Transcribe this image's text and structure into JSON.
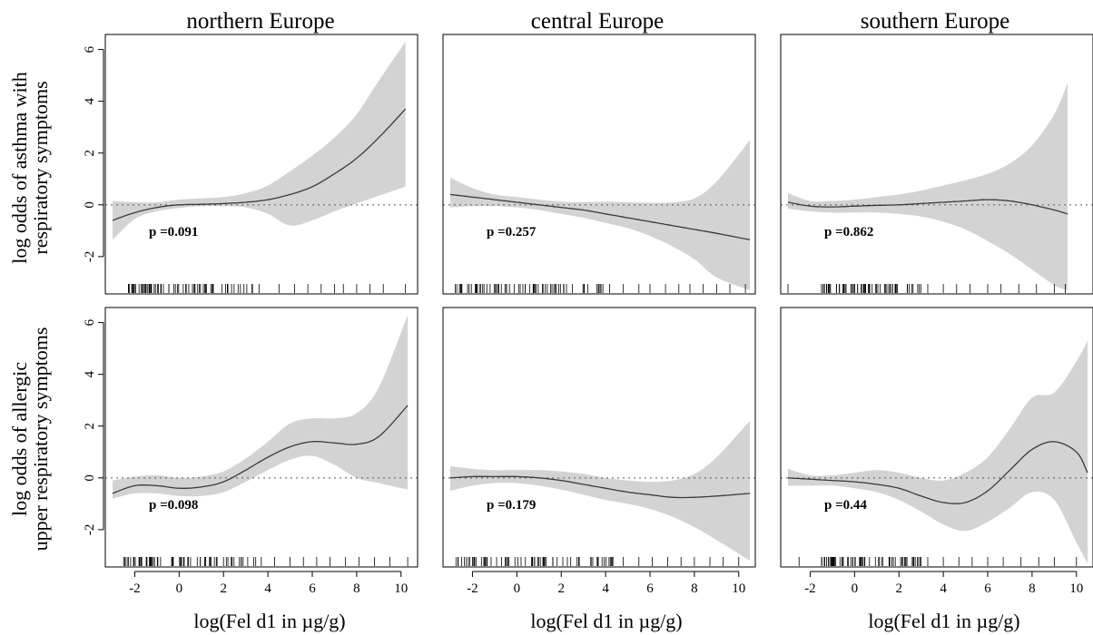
{
  "chart_data": {
    "type": "line",
    "layout": "2x3 small multiples; shaded confidence band around each smoothed curve; dashed horizontal reference line at y=0; rug marks of observations along bottom",
    "columns": [
      "northern Europe",
      "central Europe",
      "southern Europe"
    ],
    "rows": [
      [
        "log odds of asthma with",
        "respiratory symptoms"
      ],
      [
        "log odds of allergic",
        "upper respiratory symptoms"
      ]
    ],
    "xlabel": "log(Fel d1 in µg/g)",
    "xlim": [
      -3,
      10.5
    ],
    "ylim": [
      -3.3,
      6.3
    ],
    "xticks": [
      -2,
      0,
      2,
      4,
      6,
      8,
      10
    ],
    "yticks": [
      -2,
      0,
      2,
      4,
      6
    ],
    "band_color": "#d3d3d3",
    "line_color": "#3a3a3a",
    "reference_line": 0,
    "panels": [
      {
        "region": "northern Europe",
        "outcome": "asthma with respiratory symptoms",
        "p_label": "p =0.091",
        "x": [
          -3,
          -2,
          -1,
          0,
          1,
          2,
          3,
          4,
          5,
          6,
          7,
          8,
          9,
          10.2
        ],
        "y": [
          -0.6,
          -0.3,
          -0.1,
          0.0,
          0.02,
          0.05,
          0.1,
          0.2,
          0.4,
          0.7,
          1.2,
          1.8,
          2.6,
          3.7
        ],
        "lower": [
          -1.35,
          -0.55,
          -0.25,
          -0.12,
          -0.05,
          -0.05,
          -0.1,
          -0.35,
          -0.8,
          -0.6,
          -0.25,
          0.05,
          0.35,
          0.7
        ],
        "upper": [
          0.15,
          0.1,
          0.1,
          0.2,
          0.25,
          0.3,
          0.45,
          0.75,
          1.3,
          1.9,
          2.6,
          3.5,
          4.8,
          6.3
        ],
        "rug": {
          "dense": [
            -2.3,
            3.5
          ],
          "sparse": [
            3.6,
            4.5,
            5.2,
            5.8,
            6.4,
            7.0,
            7.4,
            8.0,
            8.6,
            9.2,
            10.2
          ]
        }
      },
      {
        "region": "central Europe",
        "outcome": "asthma with respiratory symptoms",
        "p_label": "p =0.257",
        "x": [
          -3,
          -2,
          -1,
          0,
          1,
          2,
          3,
          4,
          5,
          6,
          7,
          8,
          9,
          10.5
        ],
        "y": [
          0.4,
          0.3,
          0.2,
          0.1,
          0.0,
          -0.1,
          -0.2,
          -0.35,
          -0.5,
          -0.65,
          -0.8,
          -0.95,
          -1.1,
          -1.35
        ],
        "lower": [
          -0.1,
          -0.05,
          -0.05,
          -0.1,
          -0.2,
          -0.35,
          -0.5,
          -0.7,
          -0.9,
          -1.2,
          -1.6,
          -2.1,
          -2.8,
          -3.3
        ],
        "upper": [
          1.05,
          0.65,
          0.4,
          0.3,
          0.2,
          0.12,
          0.1,
          0.12,
          0.1,
          0.08,
          0.1,
          0.25,
          0.9,
          2.5
        ],
        "rug": {
          "dense": [
            -2.8,
            4.5
          ],
          "sparse": [
            4.8,
            5.5,
            6.0,
            6.7,
            7.3,
            7.8,
            8.4,
            9.0,
            9.6,
            10.3
          ]
        }
      },
      {
        "region": "southern Europe",
        "outcome": "asthma with respiratory symptoms",
        "p_label": "p =0.862",
        "x": [
          -3,
          -2,
          -1,
          0,
          1,
          2,
          3,
          4,
          5,
          6,
          7,
          8,
          9,
          9.6
        ],
        "y": [
          0.1,
          -0.05,
          -0.08,
          -0.05,
          -0.02,
          0.0,
          0.05,
          0.1,
          0.15,
          0.2,
          0.15,
          0.0,
          -0.2,
          -0.35
        ],
        "lower": [
          -0.15,
          -0.25,
          -0.3,
          -0.3,
          -0.3,
          -0.35,
          -0.45,
          -0.65,
          -0.95,
          -1.4,
          -1.9,
          -2.5,
          -3.1,
          -3.3
        ],
        "upper": [
          0.45,
          0.15,
          0.15,
          0.2,
          0.3,
          0.4,
          0.55,
          0.75,
          0.95,
          1.2,
          1.6,
          2.3,
          3.5,
          4.7
        ],
        "rug": {
          "dense": [
            -1.5,
            3.0
          ],
          "sparse": [
            -3.0,
            3.3,
            4.0,
            4.6,
            5.2,
            6.0,
            6.6,
            7.4,
            8.2,
            9.0,
            9.5
          ]
        }
      },
      {
        "region": "northern Europe",
        "outcome": "allergic upper respiratory symptoms",
        "p_label": "p =0.098",
        "x": [
          -3,
          -2,
          -1,
          0,
          1,
          2,
          3,
          4,
          5,
          6,
          7,
          8,
          9,
          10.3
        ],
        "y": [
          -0.6,
          -0.3,
          -0.3,
          -0.4,
          -0.35,
          -0.15,
          0.3,
          0.8,
          1.2,
          1.4,
          1.35,
          1.3,
          1.6,
          2.8
        ],
        "lower": [
          -0.8,
          -0.6,
          -0.6,
          -0.7,
          -0.7,
          -0.55,
          -0.15,
          0.3,
          0.7,
          0.85,
          0.5,
          0.0,
          -0.2,
          -0.45
        ],
        "upper": [
          -0.1,
          0.05,
          0.1,
          0.0,
          0.05,
          0.25,
          0.75,
          1.4,
          2.1,
          2.3,
          2.3,
          2.5,
          3.5,
          6.3
        ],
        "rug": {
          "dense": [
            -2.5,
            4.0
          ],
          "sparse": [
            4.3,
            5.0,
            5.6,
            6.2,
            6.8,
            7.5,
            8.1,
            8.8,
            9.5,
            10.3
          ]
        }
      },
      {
        "region": "central Europe",
        "outcome": "allergic upper respiratory symptoms",
        "p_label": "p =0.179",
        "x": [
          -3,
          -2,
          -1,
          0,
          1,
          2,
          3,
          4,
          5,
          6,
          7,
          8,
          9,
          10.5
        ],
        "y": [
          0.0,
          0.05,
          0.05,
          0.05,
          0.0,
          -0.1,
          -0.25,
          -0.4,
          -0.55,
          -0.65,
          -0.75,
          -0.75,
          -0.7,
          -0.6
        ],
        "lower": [
          -0.5,
          -0.3,
          -0.2,
          -0.2,
          -0.3,
          -0.45,
          -0.65,
          -0.85,
          -1.0,
          -1.2,
          -1.5,
          -1.9,
          -2.4,
          -3.2
        ],
        "upper": [
          0.45,
          0.35,
          0.3,
          0.3,
          0.3,
          0.25,
          0.15,
          0.0,
          -0.1,
          -0.15,
          -0.1,
          0.15,
          0.8,
          2.2
        ],
        "rug": {
          "dense": [
            -2.8,
            4.5
          ],
          "sparse": [
            4.8,
            5.5,
            6.1,
            6.8,
            7.4,
            8.0,
            8.7,
            9.3,
            10.0
          ]
        }
      },
      {
        "region": "southern Europe",
        "outcome": "allergic upper respiratory symptoms",
        "p_label": "p =0.44",
        "x": [
          -3,
          -2,
          -1,
          0,
          1,
          2,
          3,
          4,
          5,
          6,
          7,
          8,
          9,
          10,
          10.5
        ],
        "y": [
          0.0,
          -0.05,
          -0.1,
          -0.15,
          -0.25,
          -0.4,
          -0.7,
          -0.95,
          -0.95,
          -0.5,
          0.3,
          1.1,
          1.4,
          1.0,
          0.2
        ],
        "lower": [
          -0.3,
          -0.3,
          -0.3,
          -0.4,
          -0.55,
          -0.85,
          -1.3,
          -1.8,
          -2.05,
          -1.7,
          -1.15,
          -0.55,
          -0.85,
          -2.5,
          -3.3
        ],
        "upper": [
          0.35,
          0.1,
          0.1,
          0.2,
          0.3,
          0.2,
          0.0,
          -0.1,
          0.2,
          0.8,
          1.9,
          3.1,
          3.3,
          4.5,
          5.3
        ],
        "rug": {
          "dense": [
            -1.5,
            3.0
          ],
          "sparse": [
            -2.5,
            3.3,
            4.0,
            4.7,
            5.3,
            6.0,
            6.7,
            7.5,
            8.3,
            9.0,
            10.0
          ]
        }
      }
    ]
  }
}
